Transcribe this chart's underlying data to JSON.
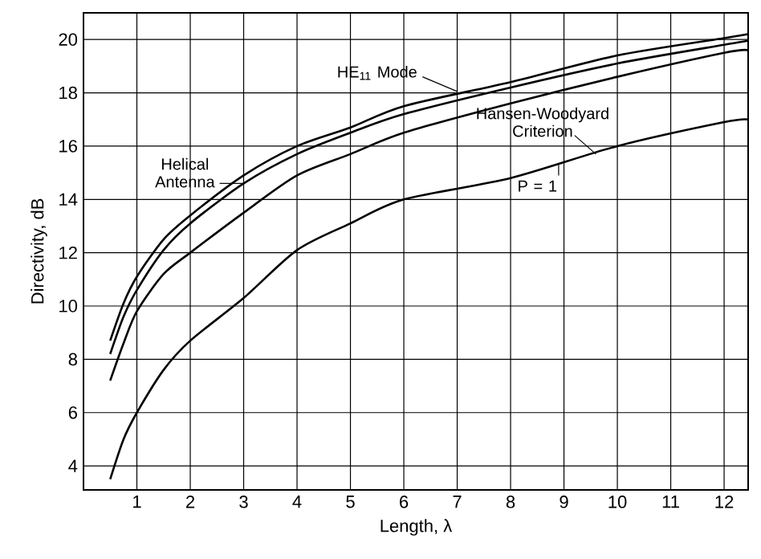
{
  "chart_data": {
    "type": "line",
    "xlabel": "Length, λ",
    "ylabel": "Directivity, dB",
    "xlim": [
      0,
      12.45
    ],
    "ylim": [
      3.1,
      21
    ],
    "xticks": [
      1,
      2,
      3,
      4,
      5,
      6,
      7,
      8,
      9,
      10,
      11,
      12
    ],
    "yticks": [
      4,
      6,
      8,
      10,
      12,
      14,
      16,
      18,
      20
    ],
    "grid": true,
    "marker": "none",
    "line_style": "solid",
    "x": [
      0.5,
      0.75,
      1,
      1.5,
      2,
      3,
      4,
      5,
      6,
      8,
      10,
      12,
      12.45
    ],
    "series": [
      {
        "name": "HE$_{11}$ Mode",
        "color": "#000000",
        "values": [
          8.7,
          10.1,
          11.1,
          12.5,
          13.4,
          14.9,
          16.0,
          16.7,
          17.5,
          18.4,
          19.4,
          20.05,
          20.2
        ]
      },
      {
        "name": "Helical Antenna",
        "color": "#000000",
        "values": [
          8.2,
          9.6,
          10.6,
          12.1,
          13.1,
          14.6,
          15.7,
          16.5,
          17.2,
          18.2,
          19.1,
          19.8,
          19.95
        ]
      },
      {
        "name": "Hansen-Woodyard Criterion",
        "color": "#000000",
        "values": [
          7.2,
          8.6,
          9.8,
          11.2,
          12.0,
          13.5,
          14.9,
          15.7,
          16.5,
          17.6,
          18.6,
          19.5,
          19.6
        ]
      },
      {
        "name": "P = 1",
        "color": "#000000",
        "values": [
          3.5,
          5.0,
          6.0,
          7.6,
          8.7,
          10.3,
          12.1,
          13.1,
          14.0,
          14.8,
          16.0,
          16.9,
          17.0
        ]
      }
    ]
  }
}
